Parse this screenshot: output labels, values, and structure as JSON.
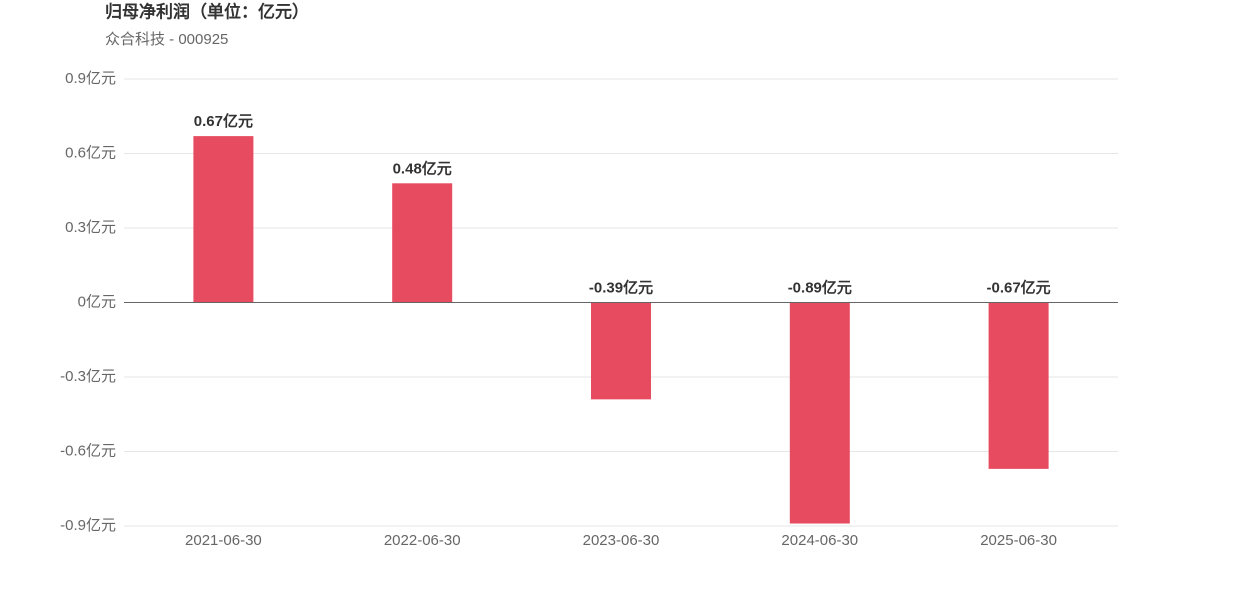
{
  "chart_data": {
    "type": "bar",
    "title": "归母净利润（单位：亿元）",
    "subtitle": "众合科技 - 000925",
    "categories": [
      "2021-06-30",
      "2022-06-30",
      "2023-06-30",
      "2024-06-30",
      "2025-06-30"
    ],
    "values": [
      0.67,
      0.48,
      -0.39,
      -0.89,
      -0.67
    ],
    "value_labels": [
      "0.67亿元",
      "0.48亿元",
      "-0.39亿元",
      "-0.89亿元",
      "-0.67亿元"
    ],
    "color": "#e64b5f",
    "ylim": [
      -0.9,
      0.9
    ],
    "yticks": [
      {
        "value": -0.9,
        "label": "-0.9亿元"
      },
      {
        "value": -0.6,
        "label": "-0.6亿元"
      },
      {
        "value": -0.3,
        "label": "-0.3亿元"
      },
      {
        "value": 0,
        "label": "0亿元"
      },
      {
        "value": 0.3,
        "label": "0.3亿元"
      },
      {
        "value": 0.6,
        "label": "0.6亿元"
      },
      {
        "value": 0.9,
        "label": "0.9亿元"
      }
    ],
    "grid": true
  }
}
